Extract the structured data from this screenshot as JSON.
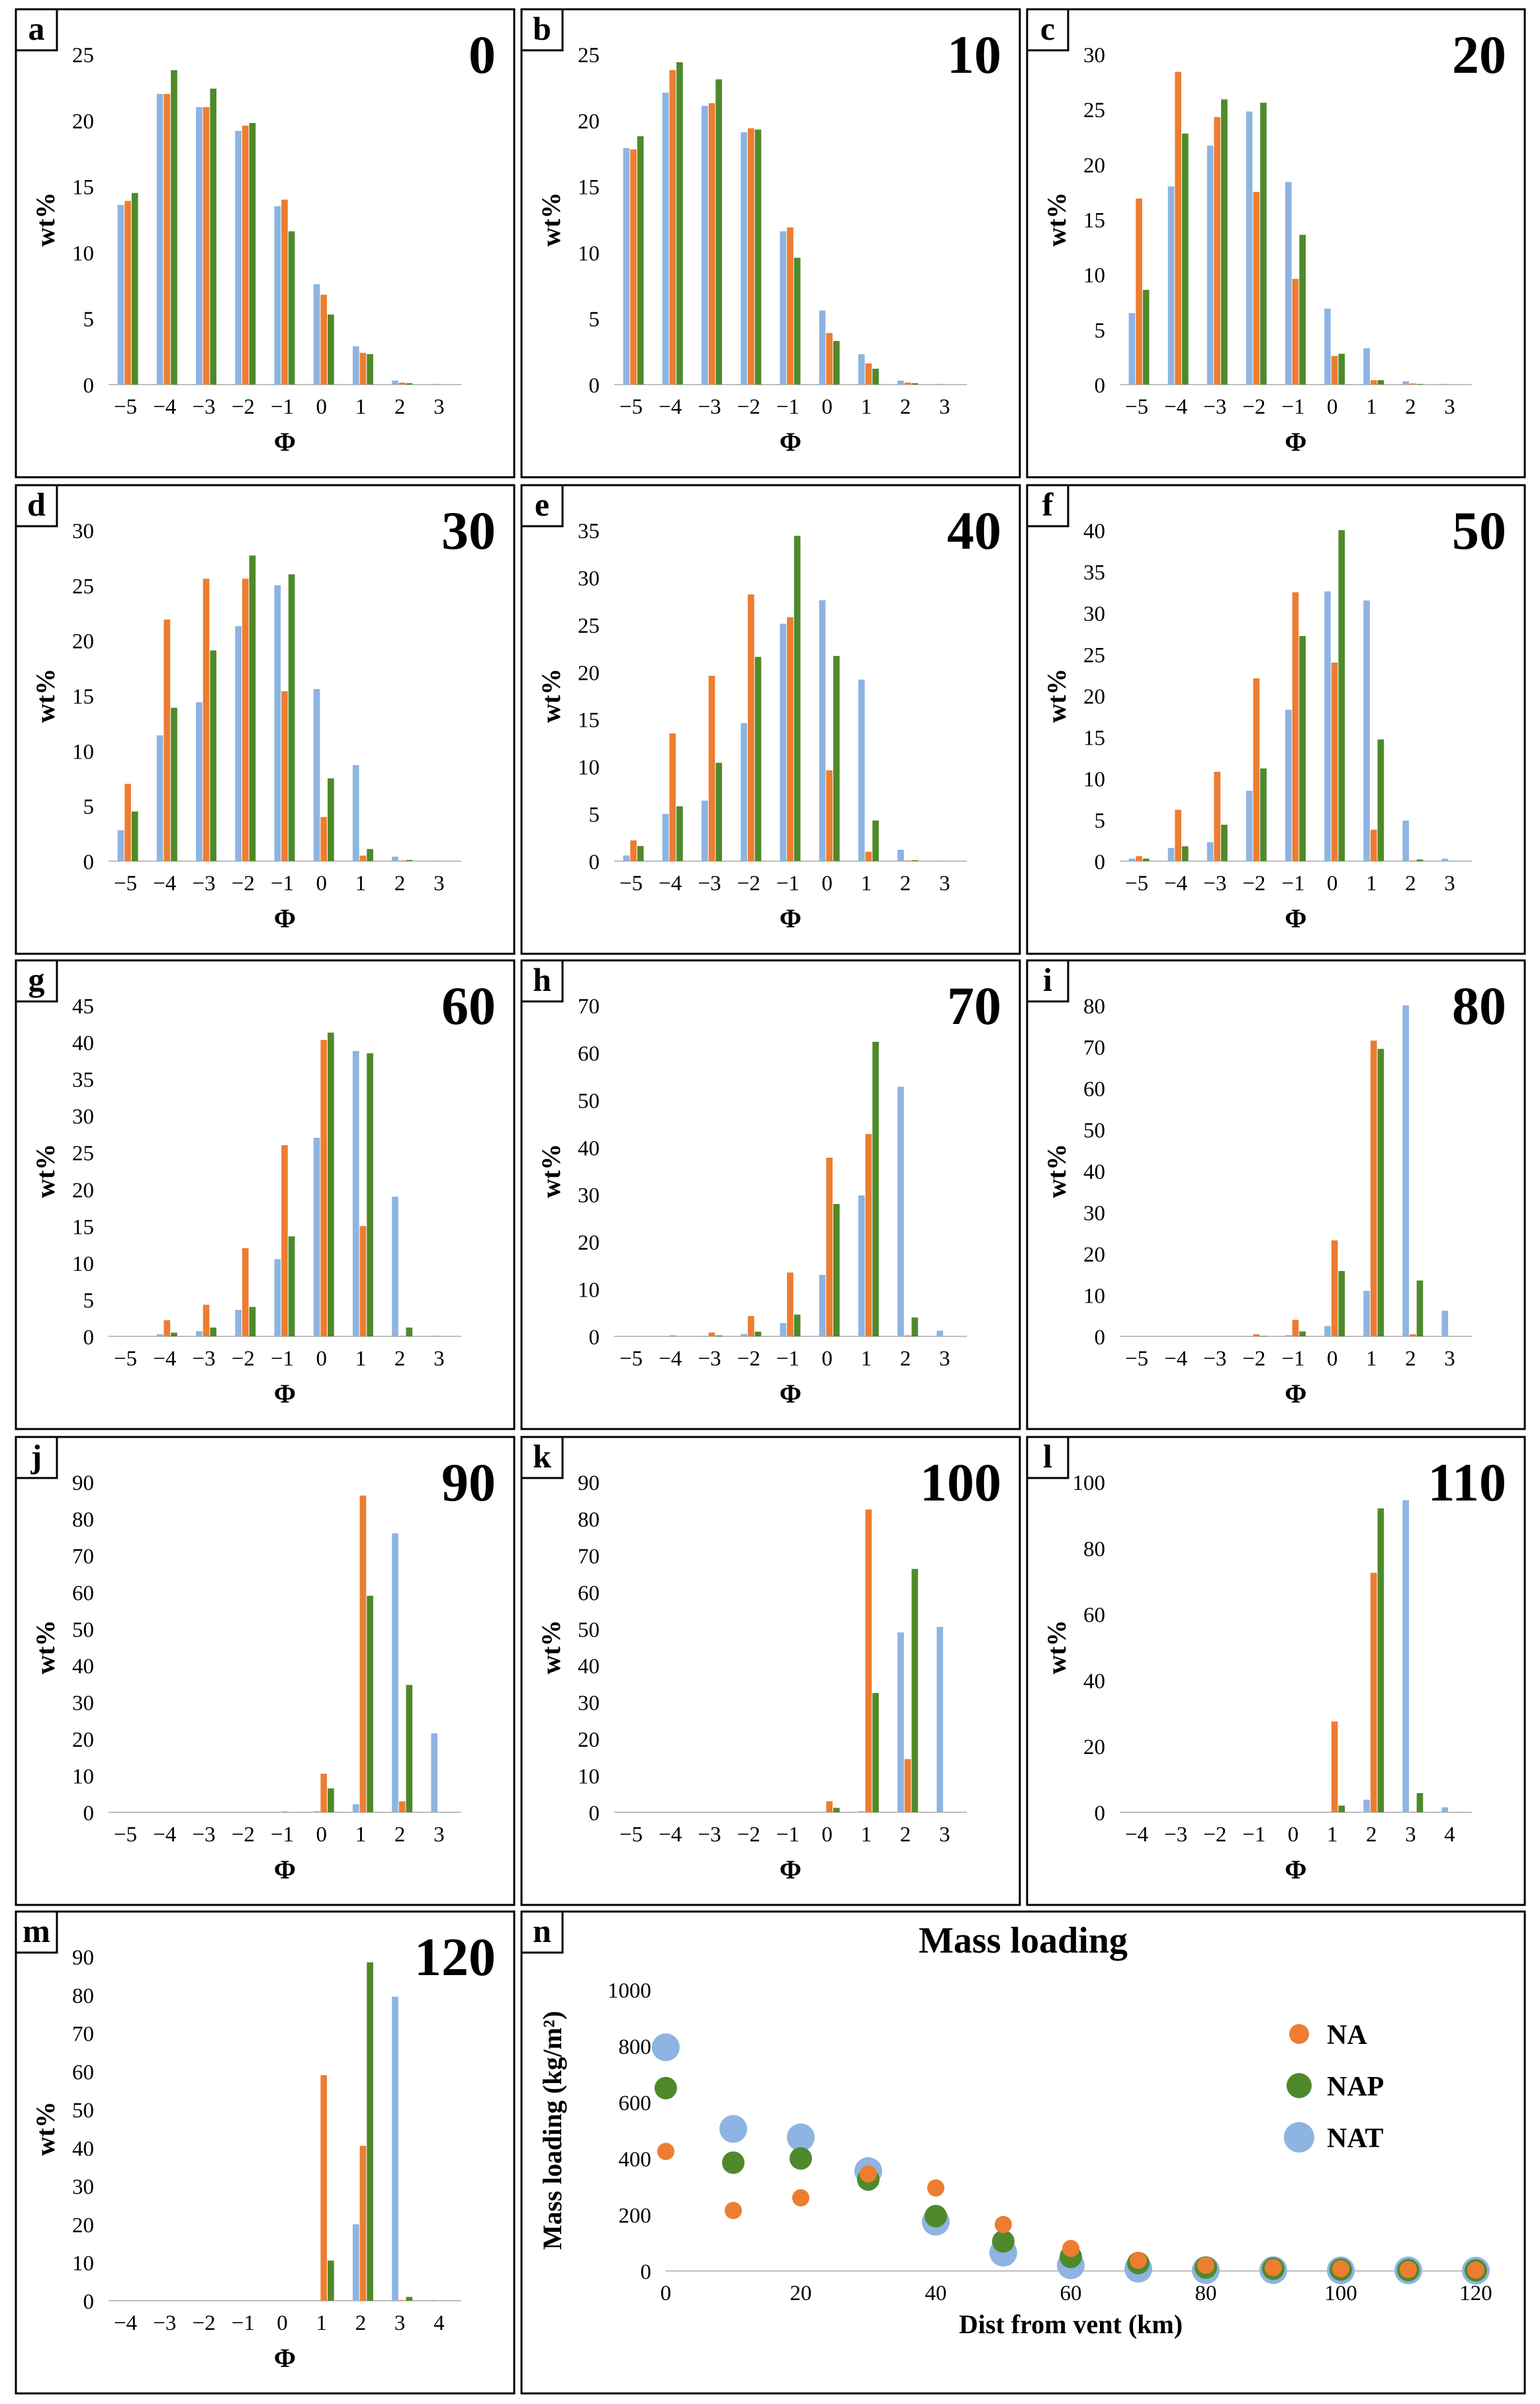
{
  "colors": {
    "NA": "#ED7D31",
    "NAP": "#4E8A2B",
    "NAT": "#8DB4E2",
    "axis": "#BFBFBF",
    "frame": "#000000"
  },
  "series_names": [
    "NA",
    "NAP",
    "NAT"
  ],
  "x_axis_label": "Φ",
  "y_axis_label": "wt%",
  "chart_data": [
    {
      "panel": "a",
      "type": "bar",
      "title": "0",
      "categories": [
        "−5",
        "−4",
        "−3",
        "−2",
        "−1",
        "0",
        "1",
        "2",
        "3"
      ],
      "ylim": [
        0,
        25
      ],
      "yticks": [
        0,
        5,
        10,
        15,
        20,
        25
      ],
      "series": [
        {
          "name": "NAT",
          "values": [
            13.6,
            22.0,
            21.0,
            19.2,
            13.5,
            7.6,
            2.9,
            0.3,
            0.05
          ]
        },
        {
          "name": "NA",
          "values": [
            13.9,
            22.0,
            21.0,
            19.6,
            14.0,
            6.8,
            2.4,
            0.15,
            0
          ]
        },
        {
          "name": "NAP",
          "values": [
            14.5,
            23.8,
            22.4,
            19.8,
            11.6,
            5.3,
            2.3,
            0.1,
            0
          ]
        }
      ]
    },
    {
      "panel": "b",
      "type": "bar",
      "title": "10",
      "categories": [
        "−5",
        "−4",
        "−3",
        "−2",
        "−1",
        "0",
        "1",
        "2",
        "3"
      ],
      "ylim": [
        0,
        25
      ],
      "yticks": [
        0,
        5,
        10,
        15,
        20,
        25
      ],
      "series": [
        {
          "name": "NAT",
          "values": [
            17.9,
            22.1,
            21.1,
            19.1,
            11.6,
            5.6,
            2.3,
            0.3,
            0.05
          ]
        },
        {
          "name": "NA",
          "values": [
            17.8,
            23.8,
            21.3,
            19.4,
            11.9,
            3.9,
            1.6,
            0.15,
            0
          ]
        },
        {
          "name": "NAP",
          "values": [
            18.8,
            24.4,
            23.1,
            19.3,
            9.6,
            3.3,
            1.2,
            0.1,
            0
          ]
        }
      ]
    },
    {
      "panel": "c",
      "type": "bar",
      "title": "20",
      "categories": [
        "−5",
        "−4",
        "−3",
        "−2",
        "−1",
        "0",
        "1",
        "2",
        "3"
      ],
      "ylim": [
        0,
        30
      ],
      "yticks": [
        0,
        5,
        10,
        15,
        20,
        25,
        30
      ],
      "series": [
        {
          "name": "NAT",
          "values": [
            6.5,
            18.0,
            21.7,
            24.8,
            18.4,
            6.9,
            3.3,
            0.3,
            0.05
          ]
        },
        {
          "name": "NA",
          "values": [
            16.9,
            28.4,
            24.3,
            17.5,
            9.6,
            2.6,
            0.4,
            0.1,
            0
          ]
        },
        {
          "name": "NAP",
          "values": [
            8.6,
            22.8,
            25.9,
            25.6,
            13.6,
            2.8,
            0.4,
            0.05,
            0
          ]
        }
      ]
    },
    {
      "panel": "d",
      "type": "bar",
      "title": "30",
      "categories": [
        "−5",
        "−4",
        "−3",
        "−2",
        "−1",
        "0",
        "1",
        "2",
        "3"
      ],
      "ylim": [
        0,
        30
      ],
      "yticks": [
        0,
        5,
        10,
        15,
        20,
        25,
        30
      ],
      "series": [
        {
          "name": "NAT",
          "values": [
            2.8,
            11.4,
            14.4,
            21.3,
            25.0,
            15.6,
            8.7,
            0.4,
            0.05
          ]
        },
        {
          "name": "NA",
          "values": [
            7.0,
            21.9,
            25.6,
            25.6,
            15.4,
            4.0,
            0.5,
            0.05,
            0
          ]
        },
        {
          "name": "NAP",
          "values": [
            4.5,
            13.9,
            19.1,
            27.7,
            26.0,
            7.5,
            1.1,
            0.1,
            0
          ]
        }
      ]
    },
    {
      "panel": "e",
      "type": "bar",
      "title": "40",
      "categories": [
        "−5",
        "−4",
        "−3",
        "−2",
        "−1",
        "0",
        "1",
        "2",
        "3"
      ],
      "ylim": [
        0,
        35
      ],
      "yticks": [
        0,
        5,
        10,
        15,
        20,
        25,
        30,
        35
      ],
      "series": [
        {
          "name": "NAT",
          "values": [
            0.6,
            5.0,
            6.4,
            14.6,
            25.1,
            27.6,
            19.2,
            1.2,
            0.05
          ]
        },
        {
          "name": "NA",
          "values": [
            2.2,
            13.5,
            19.6,
            28.2,
            25.8,
            9.6,
            1.0,
            0.05,
            0
          ]
        },
        {
          "name": "NAP",
          "values": [
            1.6,
            5.8,
            10.4,
            21.6,
            34.4,
            21.7,
            4.3,
            0.1,
            0
          ]
        }
      ]
    },
    {
      "panel": "f",
      "type": "bar",
      "title": "50",
      "categories": [
        "−5",
        "−4",
        "−3",
        "−2",
        "−1",
        "0",
        "1",
        "2",
        "3"
      ],
      "ylim": [
        0,
        40
      ],
      "yticks": [
        0,
        5,
        10,
        15,
        20,
        25,
        30,
        35,
        40
      ],
      "series": [
        {
          "name": "NAT",
          "values": [
            0.3,
            1.6,
            2.3,
            8.5,
            18.3,
            32.6,
            31.5,
            4.9,
            0.3
          ]
        },
        {
          "name": "NA",
          "values": [
            0.6,
            6.2,
            10.8,
            22.1,
            32.5,
            24.0,
            3.8,
            0.05,
            0
          ]
        },
        {
          "name": "NAP",
          "values": [
            0.3,
            1.8,
            4.4,
            11.2,
            27.2,
            40.0,
            14.7,
            0.2,
            0
          ]
        }
      ]
    },
    {
      "panel": "g",
      "type": "bar",
      "title": "60",
      "categories": [
        "−5",
        "−4",
        "−3",
        "−2",
        "−1",
        "0",
        "1",
        "2",
        "3"
      ],
      "ylim": [
        0,
        45
      ],
      "yticks": [
        0,
        5,
        10,
        15,
        20,
        25,
        30,
        35,
        40,
        45
      ],
      "series": [
        {
          "name": "NAT",
          "values": [
            0,
            0.3,
            0.7,
            3.6,
            10.5,
            27.0,
            38.8,
            19.0,
            0.1
          ]
        },
        {
          "name": "NA",
          "values": [
            0,
            2.2,
            4.3,
            12.0,
            26.0,
            40.3,
            15.0,
            0.05,
            0
          ]
        },
        {
          "name": "NAP",
          "values": [
            0,
            0.5,
            1.2,
            4.0,
            13.6,
            41.3,
            38.5,
            1.2,
            0
          ]
        }
      ]
    },
    {
      "panel": "h",
      "type": "bar",
      "title": "70",
      "categories": [
        "−5",
        "−4",
        "−3",
        "−2",
        "−1",
        "0",
        "1",
        "2",
        "3"
      ],
      "ylim": [
        0,
        70
      ],
      "yticks": [
        0,
        10,
        20,
        30,
        40,
        50,
        60,
        70
      ],
      "series": [
        {
          "name": "NAT",
          "values": [
            0,
            0,
            0.1,
            0.5,
            2.8,
            13.0,
            29.8,
            52.8,
            1.2
          ]
        },
        {
          "name": "NA",
          "values": [
            0,
            0.2,
            0.8,
            4.3,
            13.5,
            37.8,
            42.8,
            0.2,
            0
          ]
        },
        {
          "name": "NAP",
          "values": [
            0,
            0,
            0.2,
            1.0,
            4.6,
            28.0,
            62.3,
            4.0,
            0
          ]
        }
      ]
    },
    {
      "panel": "i",
      "type": "bar",
      "title": "80",
      "categories": [
        "−5",
        "−4",
        "−3",
        "−2",
        "−1",
        "0",
        "1",
        "2",
        "3"
      ],
      "ylim": [
        0,
        80
      ],
      "yticks": [
        0,
        10,
        20,
        30,
        40,
        50,
        60,
        70,
        80
      ],
      "series": [
        {
          "name": "NAT",
          "values": [
            0,
            0,
            0,
            0.1,
            0.3,
            2.5,
            11.0,
            80.0,
            6.2
          ]
        },
        {
          "name": "NA",
          "values": [
            0,
            0,
            0,
            0.5,
            4.0,
            23.2,
            71.5,
            0.5,
            0
          ]
        },
        {
          "name": "NAP",
          "values": [
            0,
            0,
            0,
            0.1,
            1.2,
            15.8,
            69.5,
            13.5,
            0
          ]
        }
      ]
    },
    {
      "panel": "j",
      "type": "bar",
      "title": "90",
      "categories": [
        "−5",
        "−4",
        "−3",
        "−2",
        "−1",
        "0",
        "1",
        "2",
        "3"
      ],
      "ylim": [
        0,
        90
      ],
      "yticks": [
        0,
        10,
        20,
        30,
        40,
        50,
        60,
        70,
        80,
        90
      ],
      "series": [
        {
          "name": "NAT",
          "values": [
            0,
            0,
            0,
            0,
            0,
            0.3,
            2.2,
            76.0,
            21.5
          ]
        },
        {
          "name": "NA",
          "values": [
            0,
            0,
            0,
            0,
            0.2,
            10.5,
            86.3,
            3.0,
            0
          ]
        },
        {
          "name": "NAP",
          "values": [
            0,
            0,
            0,
            0,
            0,
            6.5,
            59.0,
            34.7,
            0
          ]
        }
      ]
    },
    {
      "panel": "k",
      "type": "bar",
      "title": "100",
      "categories": [
        "−5",
        "−4",
        "−3",
        "−2",
        "−1",
        "0",
        "1",
        "2",
        "3"
      ],
      "ylim": [
        0,
        90
      ],
      "yticks": [
        0,
        10,
        20,
        30,
        40,
        50,
        60,
        70,
        80,
        90
      ],
      "series": [
        {
          "name": "NAT",
          "values": [
            0,
            0,
            0,
            0,
            0,
            0.1,
            0.3,
            49.0,
            50.5
          ]
        },
        {
          "name": "NA",
          "values": [
            0,
            0,
            0,
            0,
            0,
            3.0,
            82.5,
            14.5,
            0
          ]
        },
        {
          "name": "NAP",
          "values": [
            0,
            0,
            0,
            0,
            0,
            1.2,
            32.5,
            66.3,
            0
          ]
        }
      ]
    },
    {
      "panel": "l",
      "type": "bar",
      "title": "110",
      "categories": [
        "−4",
        "−3",
        "−2",
        "−1",
        "0",
        "1",
        "2",
        "3",
        "4"
      ],
      "ylim": [
        0,
        100
      ],
      "yticks": [
        0,
        20,
        40,
        60,
        80,
        100
      ],
      "series": [
        {
          "name": "NAT",
          "values": [
            0,
            0,
            0,
            0,
            0,
            0.1,
            3.8,
            94.5,
            1.5
          ]
        },
        {
          "name": "NA",
          "values": [
            0,
            0,
            0,
            0,
            0,
            27.5,
            72.5,
            0.1,
            0
          ]
        },
        {
          "name": "NAP",
          "values": [
            0,
            0,
            0,
            0,
            0,
            2.0,
            92.0,
            5.8,
            0
          ]
        }
      ]
    },
    {
      "panel": "m",
      "type": "bar",
      "title": "120",
      "categories": [
        "−4",
        "−3",
        "−2",
        "−1",
        "0",
        "1",
        "2",
        "3",
        "4"
      ],
      "ylim": [
        0,
        90
      ],
      "yticks": [
        0,
        10,
        20,
        30,
        40,
        50,
        60,
        70,
        80,
        90
      ],
      "series": [
        {
          "name": "NAT",
          "values": [
            0,
            0,
            0,
            0,
            0,
            0,
            20.0,
            79.5,
            0.2
          ]
        },
        {
          "name": "NA",
          "values": [
            0,
            0,
            0,
            0,
            0,
            59.0,
            40.5,
            0.1,
            0
          ]
        },
        {
          "name": "NAP",
          "values": [
            0,
            0,
            0,
            0,
            0,
            10.5,
            88.5,
            1.0,
            0
          ]
        }
      ]
    },
    {
      "panel": "n",
      "type": "scatter",
      "title": "Mass loading",
      "xlabel": "Dist from vent (km)",
      "ylabel": "Mass loading (kg/m²)",
      "xlim": [
        0,
        120
      ],
      "xticks": [
        0,
        20,
        40,
        60,
        80,
        100,
        120
      ],
      "ylim": [
        0,
        1000
      ],
      "yticks": [
        0,
        200,
        400,
        600,
        800,
        1000
      ],
      "legend_position": "top-right",
      "series": [
        {
          "name": "NAT",
          "x": [
            0,
            10,
            20,
            30,
            40,
            50,
            60,
            70,
            80,
            90,
            100,
            110,
            120
          ],
          "y": [
            795,
            505,
            475,
            355,
            175,
            65,
            20,
            8,
            3,
            3,
            2,
            2,
            1
          ]
        },
        {
          "name": "NAP",
          "x": [
            0,
            10,
            20,
            30,
            40,
            50,
            60,
            70,
            80,
            90,
            100,
            110,
            120
          ],
          "y": [
            650,
            385,
            400,
            325,
            195,
            105,
            50,
            28,
            12,
            8,
            5,
            3,
            2
          ]
        },
        {
          "name": "NA",
          "x": [
            0,
            10,
            20,
            30,
            40,
            50,
            60,
            70,
            80,
            90,
            100,
            110,
            120
          ],
          "y": [
            425,
            215,
            260,
            345,
            295,
            165,
            80,
            38,
            20,
            12,
            8,
            5,
            3
          ]
        }
      ]
    }
  ]
}
